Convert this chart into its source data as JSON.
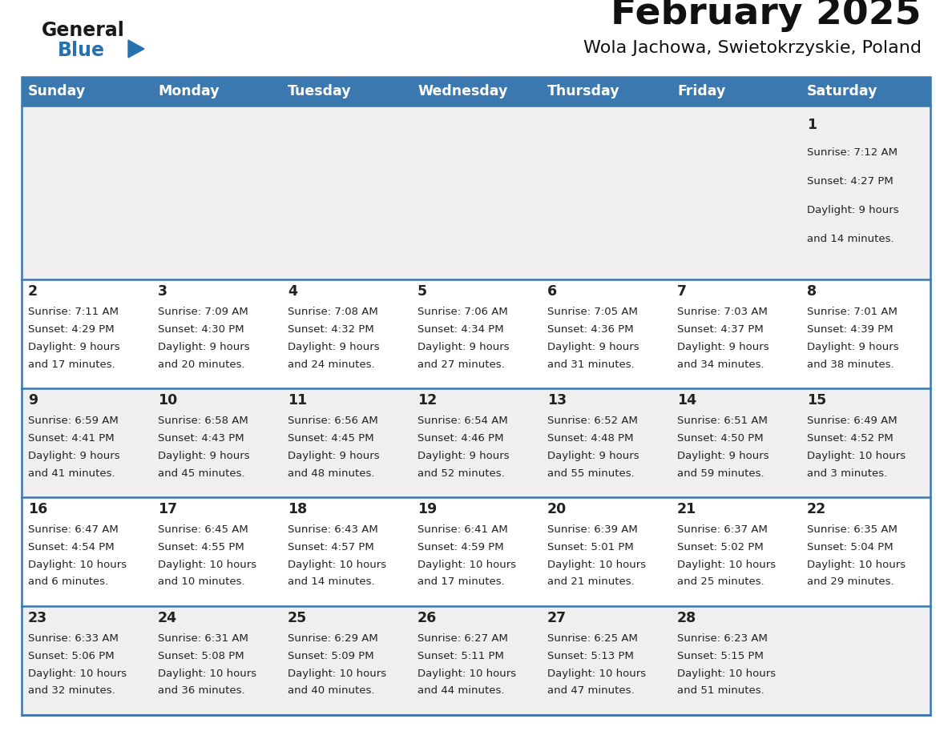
{
  "title": "February 2025",
  "subtitle": "Wola Jachowa, Swietokrzyskie, Poland",
  "days_of_week": [
    "Sunday",
    "Monday",
    "Tuesday",
    "Wednesday",
    "Thursday",
    "Friday",
    "Saturday"
  ],
  "header_bg": "#3b78b0",
  "header_text": "#ffffff",
  "row_bg_light": "#efefef",
  "row_bg_white": "#ffffff",
  "separator_color": "#3b78b0",
  "text_color": "#222222",
  "title_color": "#111111",
  "subtitle_color": "#111111",
  "cal_data": [
    [
      null,
      null,
      null,
      null,
      null,
      null,
      {
        "day": "1",
        "sunrise": "7:12 AM",
        "sunset": "4:27 PM",
        "daylight_line1": "Daylight: 9 hours",
        "daylight_line2": "and 14 minutes."
      }
    ],
    [
      {
        "day": "2",
        "sunrise": "7:11 AM",
        "sunset": "4:29 PM",
        "daylight_line1": "Daylight: 9 hours",
        "daylight_line2": "and 17 minutes."
      },
      {
        "day": "3",
        "sunrise": "7:09 AM",
        "sunset": "4:30 PM",
        "daylight_line1": "Daylight: 9 hours",
        "daylight_line2": "and 20 minutes."
      },
      {
        "day": "4",
        "sunrise": "7:08 AM",
        "sunset": "4:32 PM",
        "daylight_line1": "Daylight: 9 hours",
        "daylight_line2": "and 24 minutes."
      },
      {
        "day": "5",
        "sunrise": "7:06 AM",
        "sunset": "4:34 PM",
        "daylight_line1": "Daylight: 9 hours",
        "daylight_line2": "and 27 minutes."
      },
      {
        "day": "6",
        "sunrise": "7:05 AM",
        "sunset": "4:36 PM",
        "daylight_line1": "Daylight: 9 hours",
        "daylight_line2": "and 31 minutes."
      },
      {
        "day": "7",
        "sunrise": "7:03 AM",
        "sunset": "4:37 PM",
        "daylight_line1": "Daylight: 9 hours",
        "daylight_line2": "and 34 minutes."
      },
      {
        "day": "8",
        "sunrise": "7:01 AM",
        "sunset": "4:39 PM",
        "daylight_line1": "Daylight: 9 hours",
        "daylight_line2": "and 38 minutes."
      }
    ],
    [
      {
        "day": "9",
        "sunrise": "6:59 AM",
        "sunset": "4:41 PM",
        "daylight_line1": "Daylight: 9 hours",
        "daylight_line2": "and 41 minutes."
      },
      {
        "day": "10",
        "sunrise": "6:58 AM",
        "sunset": "4:43 PM",
        "daylight_line1": "Daylight: 9 hours",
        "daylight_line2": "and 45 minutes."
      },
      {
        "day": "11",
        "sunrise": "6:56 AM",
        "sunset": "4:45 PM",
        "daylight_line1": "Daylight: 9 hours",
        "daylight_line2": "and 48 minutes."
      },
      {
        "day": "12",
        "sunrise": "6:54 AM",
        "sunset": "4:46 PM",
        "daylight_line1": "Daylight: 9 hours",
        "daylight_line2": "and 52 minutes."
      },
      {
        "day": "13",
        "sunrise": "6:52 AM",
        "sunset": "4:48 PM",
        "daylight_line1": "Daylight: 9 hours",
        "daylight_line2": "and 55 minutes."
      },
      {
        "day": "14",
        "sunrise": "6:51 AM",
        "sunset": "4:50 PM",
        "daylight_line1": "Daylight: 9 hours",
        "daylight_line2": "and 59 minutes."
      },
      {
        "day": "15",
        "sunrise": "6:49 AM",
        "sunset": "4:52 PM",
        "daylight_line1": "Daylight: 10 hours",
        "daylight_line2": "and 3 minutes."
      }
    ],
    [
      {
        "day": "16",
        "sunrise": "6:47 AM",
        "sunset": "4:54 PM",
        "daylight_line1": "Daylight: 10 hours",
        "daylight_line2": "and 6 minutes."
      },
      {
        "day": "17",
        "sunrise": "6:45 AM",
        "sunset": "4:55 PM",
        "daylight_line1": "Daylight: 10 hours",
        "daylight_line2": "and 10 minutes."
      },
      {
        "day": "18",
        "sunrise": "6:43 AM",
        "sunset": "4:57 PM",
        "daylight_line1": "Daylight: 10 hours",
        "daylight_line2": "and 14 minutes."
      },
      {
        "day": "19",
        "sunrise": "6:41 AM",
        "sunset": "4:59 PM",
        "daylight_line1": "Daylight: 10 hours",
        "daylight_line2": "and 17 minutes."
      },
      {
        "day": "20",
        "sunrise": "6:39 AM",
        "sunset": "5:01 PM",
        "daylight_line1": "Daylight: 10 hours",
        "daylight_line2": "and 21 minutes."
      },
      {
        "day": "21",
        "sunrise": "6:37 AM",
        "sunset": "5:02 PM",
        "daylight_line1": "Daylight: 10 hours",
        "daylight_line2": "and 25 minutes."
      },
      {
        "day": "22",
        "sunrise": "6:35 AM",
        "sunset": "5:04 PM",
        "daylight_line1": "Daylight: 10 hours",
        "daylight_line2": "and 29 minutes."
      }
    ],
    [
      {
        "day": "23",
        "sunrise": "6:33 AM",
        "sunset": "5:06 PM",
        "daylight_line1": "Daylight: 10 hours",
        "daylight_line2": "and 32 minutes."
      },
      {
        "day": "24",
        "sunrise": "6:31 AM",
        "sunset": "5:08 PM",
        "daylight_line1": "Daylight: 10 hours",
        "daylight_line2": "and 36 minutes."
      },
      {
        "day": "25",
        "sunrise": "6:29 AM",
        "sunset": "5:09 PM",
        "daylight_line1": "Daylight: 10 hours",
        "daylight_line2": "and 40 minutes."
      },
      {
        "day": "26",
        "sunrise": "6:27 AM",
        "sunset": "5:11 PM",
        "daylight_line1": "Daylight: 10 hours",
        "daylight_line2": "and 44 minutes."
      },
      {
        "day": "27",
        "sunrise": "6:25 AM",
        "sunset": "5:13 PM",
        "daylight_line1": "Daylight: 10 hours",
        "daylight_line2": "and 47 minutes."
      },
      {
        "day": "28",
        "sunrise": "6:23 AM",
        "sunset": "5:15 PM",
        "daylight_line1": "Daylight: 10 hours",
        "daylight_line2": "and 51 minutes."
      },
      null
    ]
  ],
  "logo_general_color": "#1a1a1a",
  "logo_blue_color": "#2672b0",
  "fig_width": 11.88,
  "fig_height": 9.18
}
